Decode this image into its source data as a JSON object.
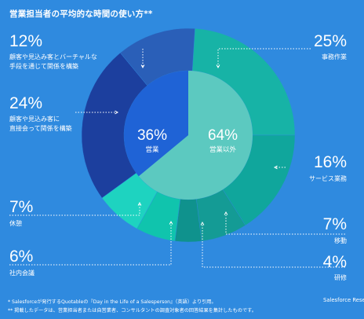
{
  "title": "営業担当者の平均的な時間の使い方**",
  "chart_data": {
    "type": "pie",
    "title": "営業担当者の平均的な時間の使い方**",
    "inner": [
      {
        "label": "営業以外",
        "value": 64,
        "value_text": "64%",
        "color": "#5cc9c0"
      },
      {
        "label": "営業",
        "value": 36,
        "value_text": "36%",
        "color": "#1f63d6"
      }
    ],
    "outer": [
      {
        "label": "事務作業",
        "value": 25,
        "value_text": "25%",
        "color": "#17b3a6",
        "group": "営業以外"
      },
      {
        "label": "サービス業務",
        "value": 16,
        "value_text": "16%",
        "color": "#10a69c",
        "group": "営業以外"
      },
      {
        "label": "移動",
        "value": 7,
        "value_text": "7%",
        "color": "#149b95",
        "group": "営業以外"
      },
      {
        "label": "研修",
        "value": 4,
        "value_text": "4%",
        "color": "#0f928d",
        "group": "営業以外"
      },
      {
        "label": "社内会議",
        "value": 6,
        "value_text": "6%",
        "color": "#10c4ad",
        "group": "営業以外"
      },
      {
        "label": "休憩",
        "value": 7,
        "value_text": "7%",
        "color": "#1ed3c0",
        "group": "営業以外"
      },
      {
        "label": "顧客や見込み客に\n直接会って関係を構築",
        "value": 24,
        "value_text": "24%",
        "color": "#1c3f9e",
        "group": "営業"
      },
      {
        "label": "顧客や見込み客とバーチャルな\n手段を通じて関係を構築",
        "value": 12,
        "value_text": "12%",
        "color": "#2a5fb8",
        "group": "営業"
      }
    ]
  },
  "footnotes": [
    "* Salesforceが発行するQuotableの『Day in the Life of a Salesperson』（英語）より引用。",
    "** 掲載したデータは、営業担当者または自営業者、コンサルタントの調査対象者の回答結果を集計したものです。"
  ],
  "brand": "Salesforce Rese"
}
